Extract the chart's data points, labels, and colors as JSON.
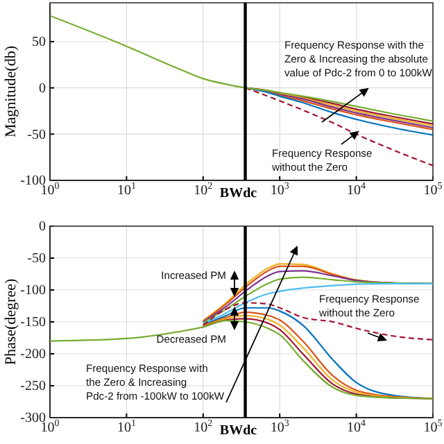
{
  "chart_data": [
    {
      "type": "line",
      "ylabel": "Magnitude(db)",
      "log": "x",
      "grid": true,
      "xlim": [
        1,
        100000
      ],
      "ylim": [
        -100,
        92
      ],
      "xticks": [
        {
          "value": 1,
          "label": "10$^{0}$"
        },
        {
          "value": 10,
          "label": "10$^{1}$"
        },
        {
          "value": 100,
          "label": "10$^{2}$"
        },
        {
          "value": 1000,
          "label": "10$^{3}$"
        },
        {
          "value": 10000,
          "label": "10$^{4}$"
        },
        {
          "value": 100000,
          "label": "10$^{5}$"
        }
      ],
      "yticks": [
        -100,
        -50,
        0,
        50
      ],
      "x": [
        1,
        10,
        50,
        100,
        200,
        355,
        700,
        1000,
        2000,
        5000,
        10000,
        30000,
        100000
      ],
      "ref_lines": [
        {
          "axis": "x",
          "value": 355,
          "label": "BWdc",
          "color": "#000000"
        }
      ],
      "annotations": [
        "Frequency Response with the\nZero & Increasing the absolute\nvalue of Pdc-2 from 0 to 100kW",
        "Frequency Response\nwithout the Zero"
      ],
      "series": [
        {
          "color": "#a2142f",
          "values": [
            null,
            null,
            null,
            null,
            null,
            0,
            -3,
            -6,
            -10,
            -17,
            -23,
            -31,
            -39
          ]
        },
        {
          "color": "#edb120",
          "values": [
            null,
            null,
            null,
            null,
            null,
            0,
            -4,
            -6,
            -11,
            -19,
            -25,
            -33,
            -41
          ]
        },
        {
          "color": "#7e2f8e",
          "values": [
            null,
            null,
            null,
            null,
            null,
            0,
            -4,
            -7,
            -12,
            -21,
            -27,
            -35,
            -43
          ]
        },
        {
          "color": "#d95319",
          "values": [
            null,
            null,
            null,
            null,
            null,
            0,
            -4,
            -8,
            -14,
            -23,
            -29,
            -37,
            -45
          ]
        },
        {
          "color": "#0072bd",
          "values": [
            null,
            null,
            null,
            null,
            null,
            0,
            -5,
            -9,
            -16,
            -27,
            -34,
            -43,
            -51
          ]
        },
        {
          "color": "#a2142f",
          "line_style": "dashed",
          "values": [
            null,
            null,
            null,
            null,
            null,
            0,
            -9,
            -14,
            -24,
            -38,
            -50,
            -67,
            -84
          ]
        },
        {
          "color": "#77ac30",
          "values": [
            78,
            45,
            20,
            10,
            4,
            0,
            -3,
            -5,
            -9,
            -15,
            -20,
            -28,
            -36
          ]
        }
      ]
    },
    {
      "type": "line",
      "ylabel": "Phase(degree)",
      "log": "x",
      "grid": true,
      "xlim": [
        1,
        100000
      ],
      "ylim": [
        -300,
        0
      ],
      "xticks": [
        {
          "value": 1,
          "label": "10$^{0}$"
        },
        {
          "value": 10,
          "label": "10$^{1}$"
        },
        {
          "value": 100,
          "label": "10$^{2}$"
        },
        {
          "value": 1000,
          "label": "10$^{3}$"
        },
        {
          "value": 10000,
          "label": "10$^{4}$"
        },
        {
          "value": 100000,
          "label": "10$^{5}$"
        }
      ],
      "yticks": [
        -300,
        -250,
        -200,
        -150,
        -100,
        -50,
        0
      ],
      "x": [
        1,
        10,
        50,
        100,
        200,
        355,
        700,
        1000,
        2000,
        5000,
        10000,
        30000,
        100000
      ],
      "ref_lines": [
        {
          "axis": "x",
          "value": 355,
          "label": "BWdc",
          "color": "#000000"
        }
      ],
      "annotations": [
        "Increased PM",
        "Decreased PM",
        "Frequency Response\nwithout the Zero",
        "Frequency Response with\nthe Zero & Increasing\nPdc-2 from -100kW to 100kW"
      ],
      "series": [
        {
          "color": "#edb120",
          "values": [
            null,
            null,
            null,
            -148,
            -120,
            -92,
            -66,
            -59,
            -60,
            -75,
            -84,
            -89,
            -90
          ]
        },
        {
          "color": "#d95319",
          "values": [
            null,
            null,
            null,
            -149,
            -122,
            -96,
            -70,
            -63,
            -63,
            -76,
            -85,
            -89,
            -90
          ]
        },
        {
          "color": "#7e2f8e",
          "values": [
            null,
            null,
            null,
            -150,
            -126,
            -102,
            -78,
            -71,
            -70,
            -78,
            -85,
            -89,
            -90
          ]
        },
        {
          "color": "#77ac30",
          "values": [
            null,
            null,
            null,
            -151,
            -130,
            -110,
            -90,
            -83,
            -80,
            -84,
            -87,
            -89,
            -90
          ]
        },
        {
          "color": "#4dbeee",
          "values": [
            null,
            null,
            null,
            -153,
            -136,
            -120,
            -106,
            -102,
            -97,
            -93,
            -91,
            -90,
            -90
          ]
        },
        {
          "color": "#0072bd",
          "values": [
            null,
            null,
            null,
            -155,
            -140,
            -128,
            -128,
            -133,
            -155,
            -210,
            -245,
            -265,
            -270
          ]
        },
        {
          "color": "#d95319",
          "values": [
            null,
            null,
            null,
            -156,
            -143,
            -135,
            -140,
            -147,
            -180,
            -235,
            -257,
            -267,
            -270
          ]
        },
        {
          "color": "#edb120",
          "values": [
            null,
            null,
            null,
            -157,
            -145,
            -140,
            -146,
            -155,
            -190,
            -242,
            -260,
            -268,
            -270
          ]
        },
        {
          "color": "#a2142f",
          "values": [
            null,
            null,
            null,
            -158,
            -147,
            -145,
            -152,
            -162,
            -200,
            -248,
            -263,
            -269,
            -270
          ]
        },
        {
          "color": "#a2142f",
          "line_style": "dashed",
          "values": [
            null,
            null,
            null,
            -155,
            -130,
            -120,
            -122,
            -128,
            -143,
            -150,
            -160,
            -172,
            -178
          ]
        },
        {
          "color": "#77ac30",
          "values": [
            -180,
            -176,
            -165,
            -158,
            -148,
            -150,
            -160,
            -170,
            -210,
            -253,
            -265,
            -269,
            -270
          ]
        }
      ]
    }
  ]
}
